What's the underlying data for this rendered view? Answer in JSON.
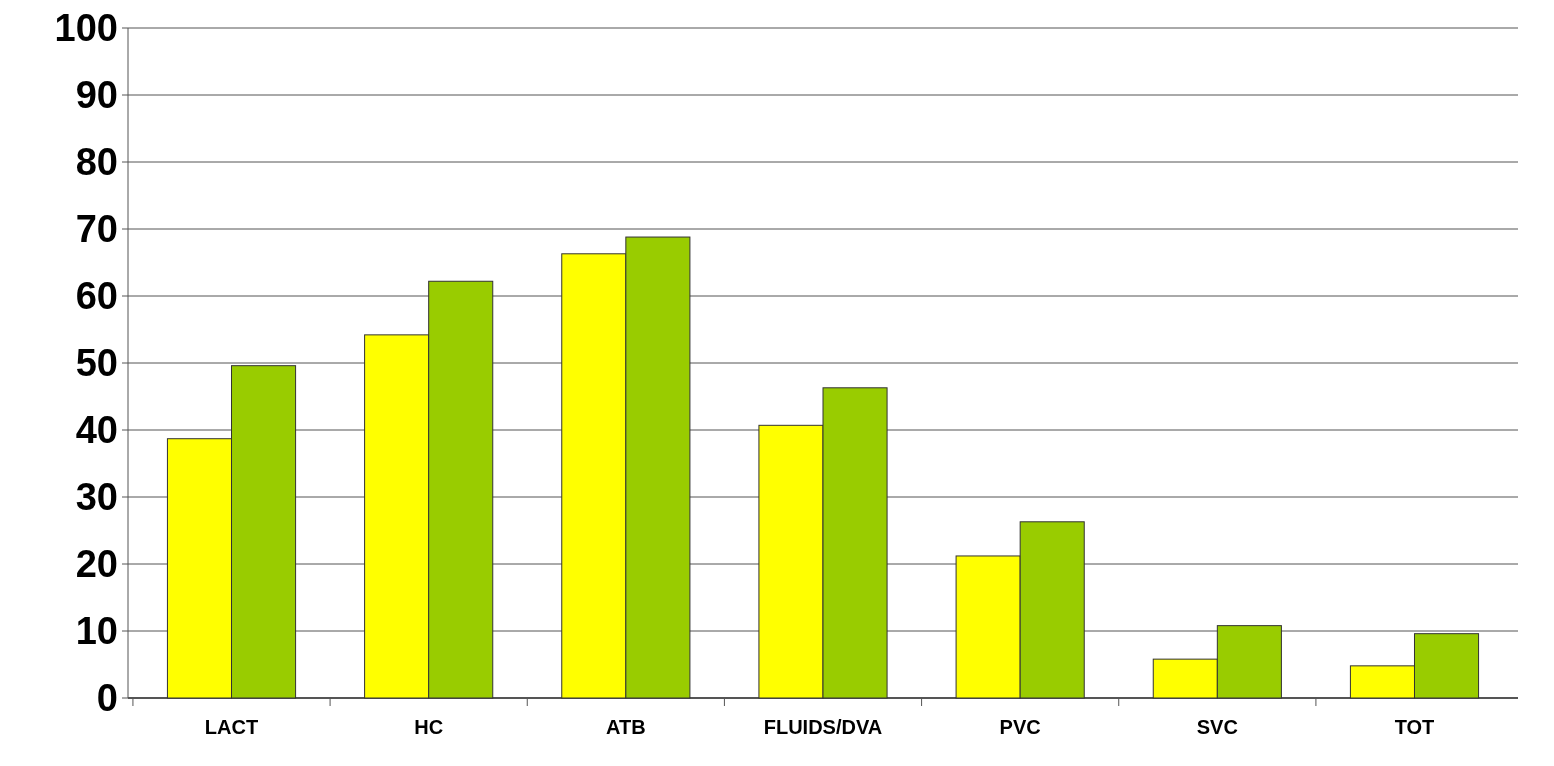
{
  "chart_data": {
    "type": "bar",
    "categories": [
      "LACT",
      "HC",
      "ATB",
      "FLUIDS/DVA",
      "PVC",
      "SVC",
      "TOT"
    ],
    "series": [
      {
        "color": "#ffff00",
        "values": [
          38.7,
          54.2,
          66.3,
          40.7,
          21.2,
          5.8,
          4.8
        ]
      },
      {
        "color": "#99cc00",
        "values": [
          49.6,
          62.2,
          68.8,
          46.3,
          26.3,
          10.8,
          9.6
        ]
      }
    ],
    "ylim": [
      0,
      100
    ],
    "yticks": [
      0,
      10,
      20,
      30,
      40,
      50,
      60,
      70,
      80,
      90,
      100
    ],
    "grid": "y"
  }
}
